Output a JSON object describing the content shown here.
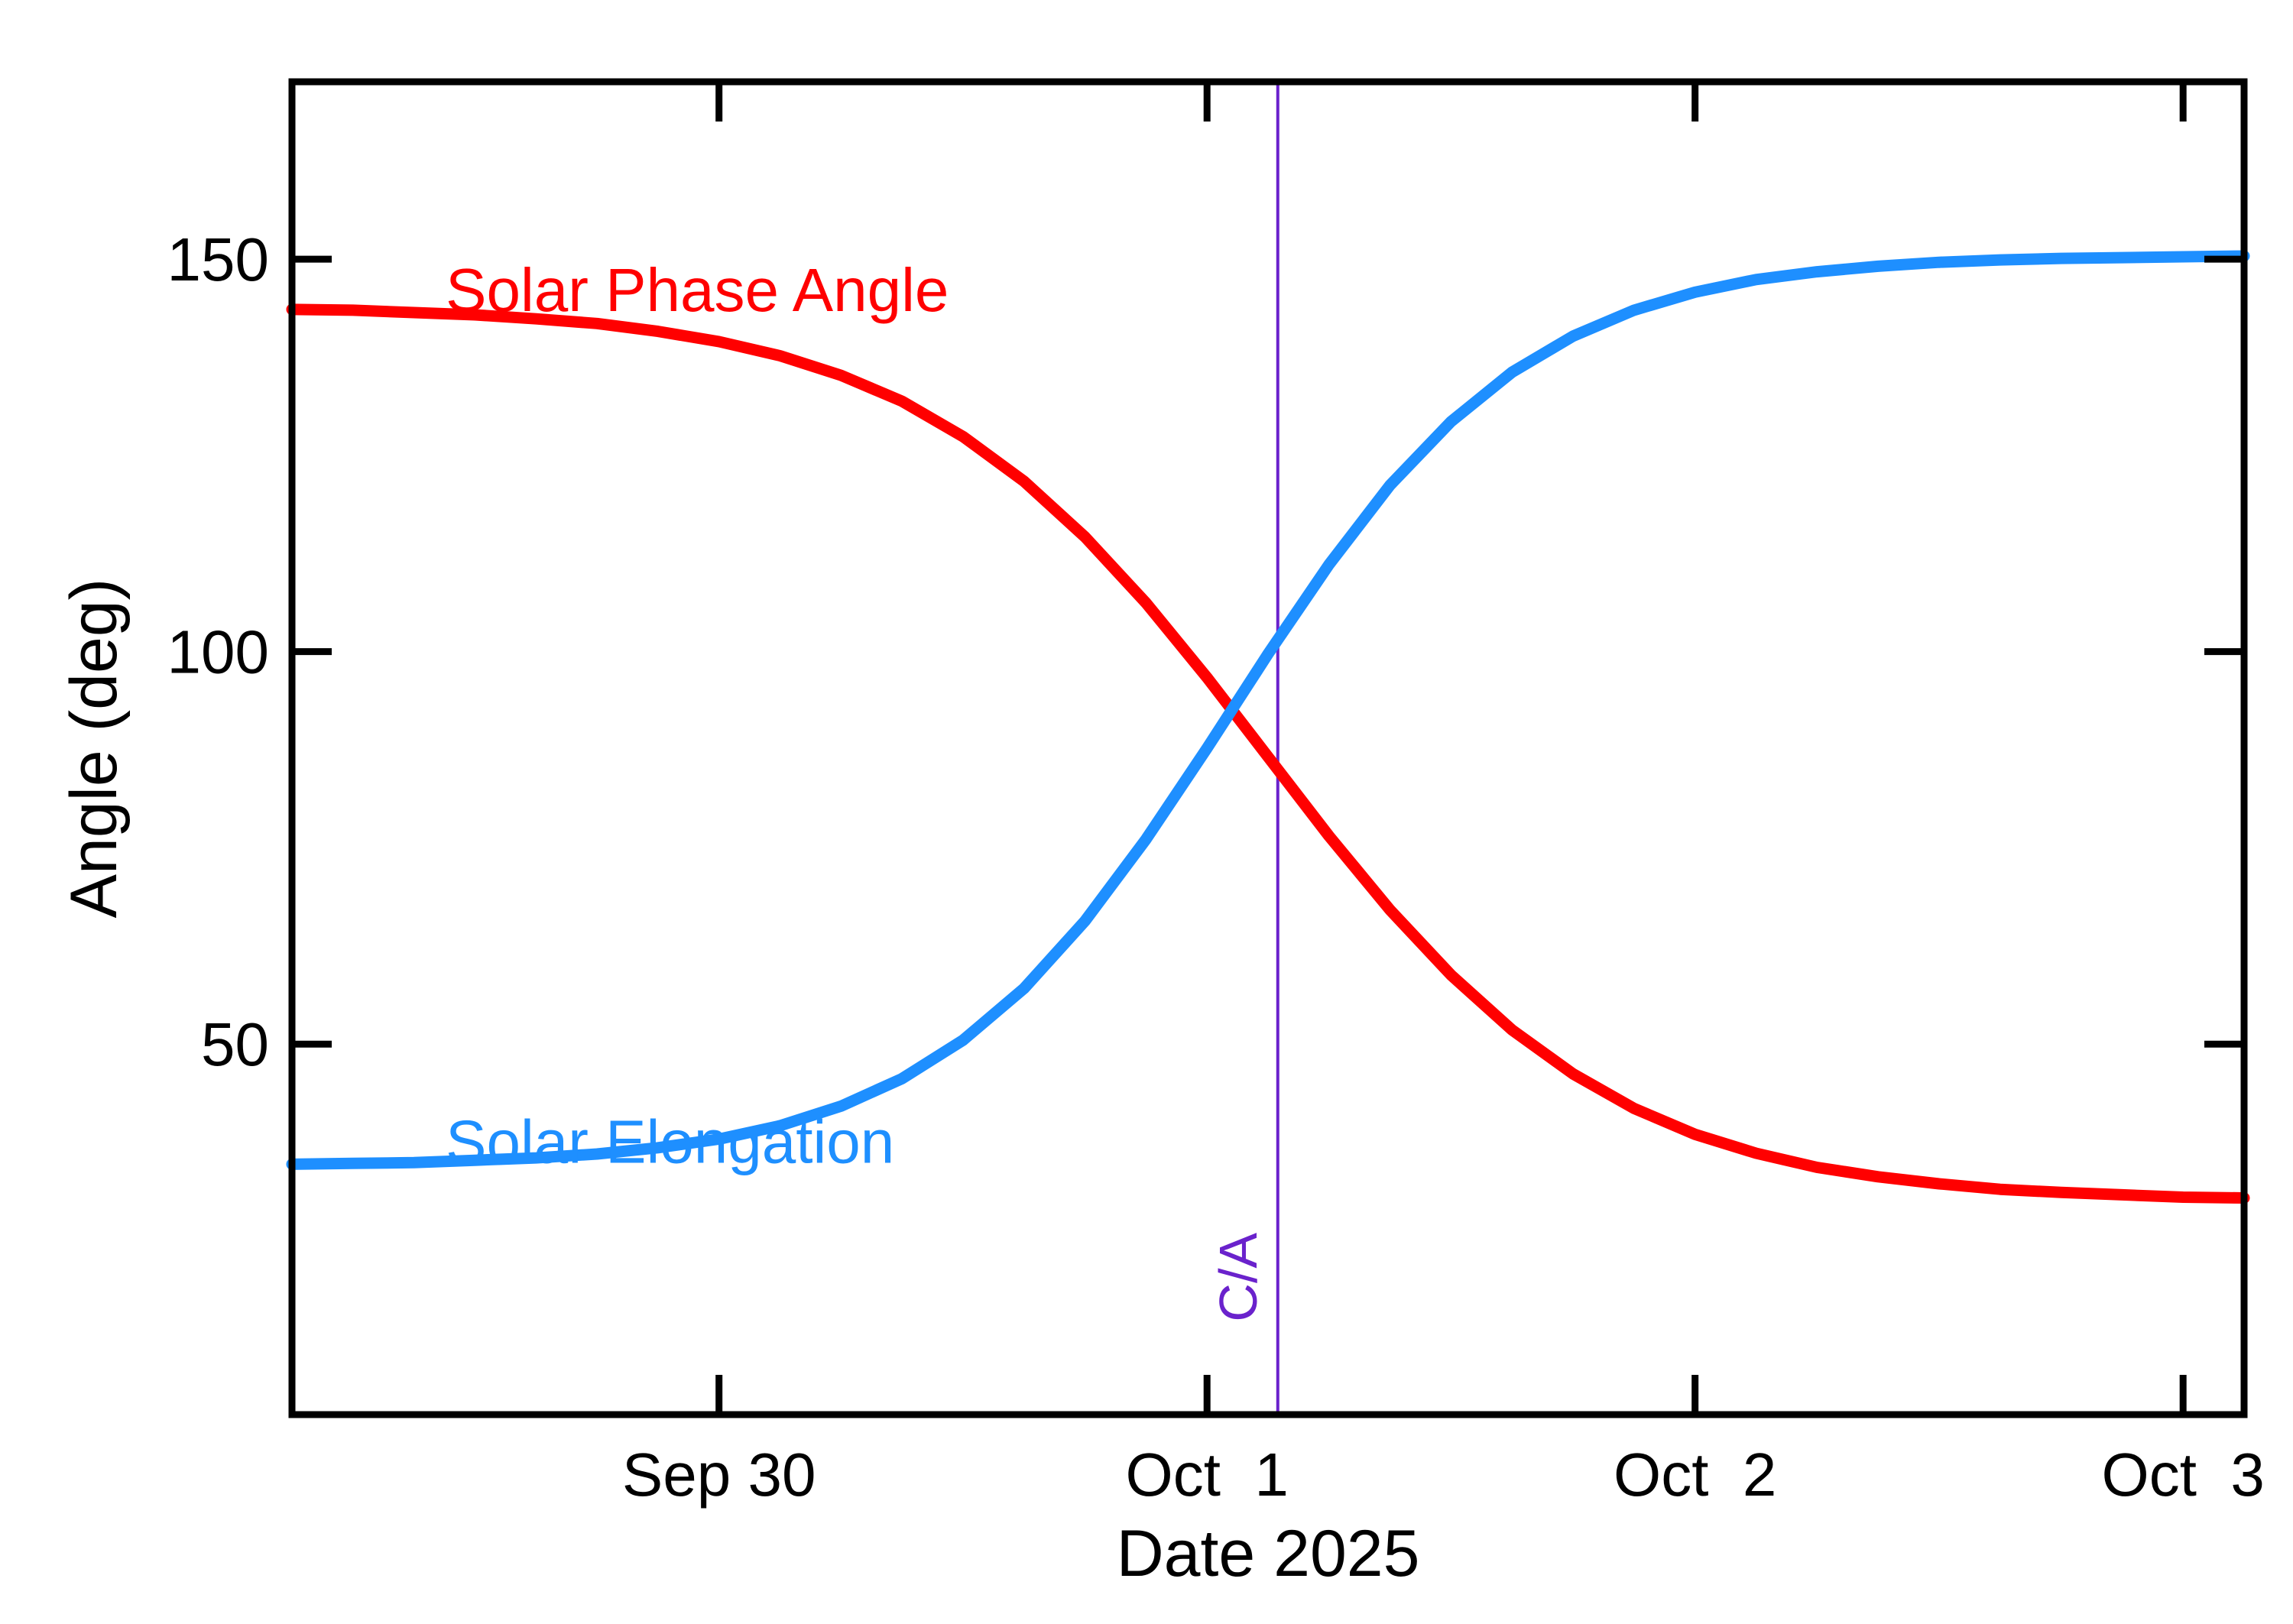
{
  "chart_data": {
    "type": "line",
    "title": "",
    "xlabel": "Date 2025",
    "ylabel": "Angle (deg)",
    "x_unit": "days relative to Oct 1 2025 00:00",
    "xlim": [
      -1.875,
      2.125
    ],
    "ylim": [
      2.8,
      172.6
    ],
    "grid": false,
    "legend_position": "inline-annotations",
    "background": "#ffffff",
    "axis_color": "#000000",
    "x_ticks": [
      {
        "t": -1,
        "label": "Sep 30"
      },
      {
        "t": 0,
        "label": "Oct  1"
      },
      {
        "t": 1,
        "label": "Oct  2"
      },
      {
        "t": 2,
        "label": "Oct  3"
      }
    ],
    "y_ticks": [
      {
        "v": 50,
        "label": "50"
      },
      {
        "v": 100,
        "label": "100"
      },
      {
        "v": 150,
        "label": "150"
      }
    ],
    "x": [
      -1.875,
      -1.75,
      -1.625,
      -1.5,
      -1.375,
      -1.25,
      -1.125,
      -1.0,
      -0.875,
      -0.75,
      -0.625,
      -0.5,
      -0.375,
      -0.25,
      -0.125,
      0.0,
      0.125,
      0.25,
      0.375,
      0.5,
      0.625,
      0.75,
      0.875,
      1.0,
      1.125,
      1.25,
      1.375,
      1.5,
      1.625,
      1.75,
      1.875,
      2.0,
      2.125
    ],
    "series": [
      {
        "name": "Solar Phase Angle",
        "color": "#ff0000",
        "values": [
          143.6,
          143.5,
          143.2,
          142.9,
          142.4,
          141.8,
          140.8,
          139.5,
          137.7,
          135.2,
          131.9,
          127.4,
          121.7,
          114.6,
          106.2,
          96.7,
          86.6,
          76.5,
          67.1,
          58.8,
          51.8,
          46.2,
          41.8,
          38.5,
          36.1,
          34.3,
          33.1,
          32.2,
          31.5,
          31.1,
          30.8,
          30.5,
          30.4
        ],
        "label": {
          "text": "Solar Phase Angle",
          "t": -1.56,
          "v": 143.4,
          "anchor": "start"
        }
      },
      {
        "name": "Solar Elongation",
        "color": "#1e8fff",
        "values": [
          34.7,
          34.8,
          34.9,
          35.2,
          35.5,
          36.0,
          36.8,
          37.9,
          39.6,
          42.1,
          45.6,
          50.5,
          57.1,
          65.7,
          76.1,
          87.7,
          99.7,
          111.1,
          121.2,
          129.3,
          135.6,
          140.2,
          143.5,
          145.8,
          147.4,
          148.4,
          149.1,
          149.6,
          149.9,
          150.1,
          150.2,
          150.3,
          150.4
        ],
        "label": {
          "text": "Solar Elongation",
          "t": -1.56,
          "v": 34.9,
          "anchor": "start"
        }
      }
    ],
    "marker": {
      "label": "C/A",
      "t": 0.145,
      "label_v": 20.3,
      "color": "#6a22cc"
    }
  }
}
